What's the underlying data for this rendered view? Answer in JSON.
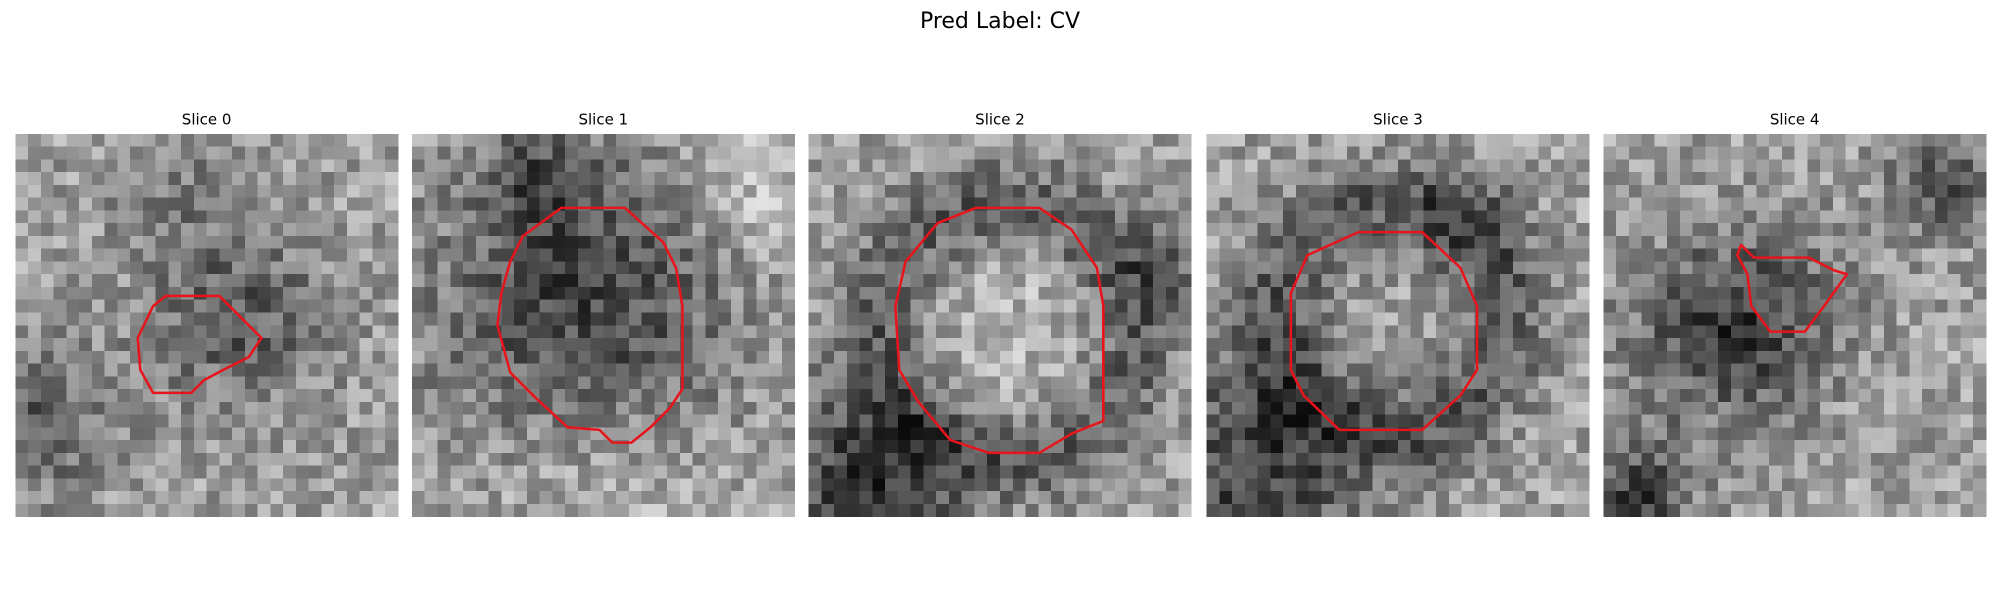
{
  "title": "Pred Label: CV",
  "panels": [
    {
      "title": "Slice 0"
    },
    {
      "title": "Slice 1"
    },
    {
      "title": "Slice 2"
    },
    {
      "title": "Slice 3"
    },
    {
      "title": "Slice 4"
    }
  ]
}
